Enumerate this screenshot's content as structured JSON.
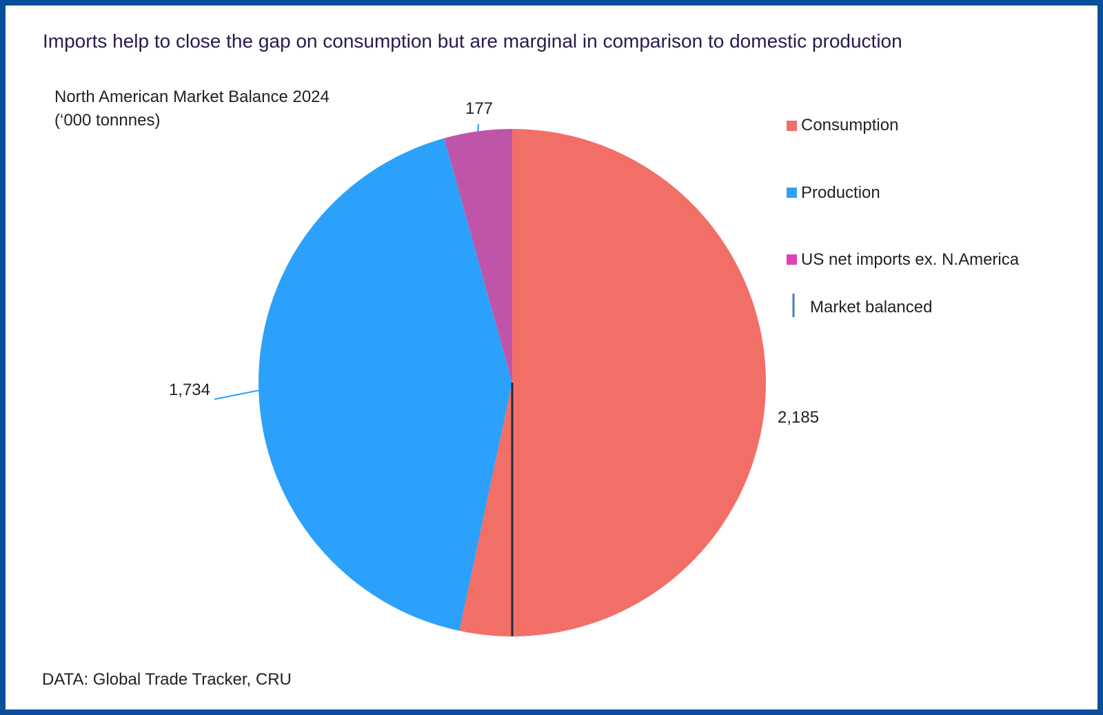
{
  "chart_data": {
    "type": "pie",
    "title": "Imports help to close the gap on consumption but are marginal in comparison to domestic production",
    "subtitle": [
      "North American Market Balance 2024",
      "(‘000 tonnnes)"
    ],
    "source": "DATA: Global Trade Tracker, CRU",
    "series": [
      {
        "name": "Consumption",
        "value": 2185,
        "label": "2,185",
        "color": "#f26f67"
      },
      {
        "name": "Production",
        "value": 1734,
        "label": "1,734",
        "color": "#2ba1fb"
      },
      {
        "name": "US net imports ex. N.America",
        "value": 177,
        "label": "177",
        "color": "#bf55a8"
      }
    ],
    "balance_marker": {
      "name": "Market balanced",
      "color": "#1f2a44",
      "legend_color": "#4a7cc4"
    },
    "legend": {
      "placement": "right",
      "items": [
        {
          "label": "Consumption",
          "color": "#f26f67"
        },
        {
          "label": "Production",
          "color": "#2ba1fb"
        },
        {
          "label": "US net imports ex. N.America",
          "color": "#e040b8"
        },
        {
          "label": "Market balanced",
          "color": "#4a7cc4"
        }
      ]
    }
  },
  "colors": {
    "border": "#0b4f9c",
    "title": "#2a1a4a",
    "text": "#222222"
  }
}
